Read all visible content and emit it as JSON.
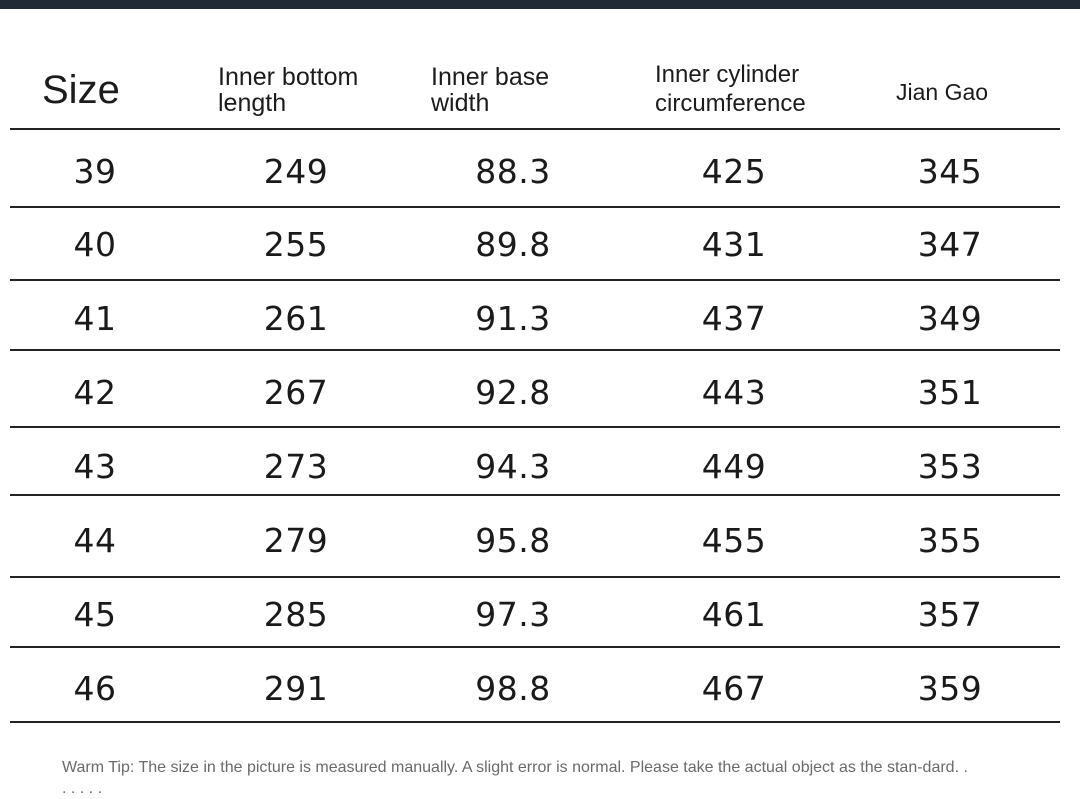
{
  "table": {
    "headers": [
      "Size",
      "Inner bottom\nlength",
      "Inner base\nwidth",
      "Inner cylinder\ncircumference",
      "Jian Gao"
    ],
    "rows": [
      [
        "39",
        "249",
        "88.3",
        "425",
        "345"
      ],
      [
        "40",
        "255",
        "89.8",
        "431",
        "347"
      ],
      [
        "41",
        "261",
        "91.3",
        "437",
        "349"
      ],
      [
        "42",
        "267",
        "92.8",
        "443",
        "351"
      ],
      [
        "43",
        "273",
        "94.3",
        "449",
        "353"
      ],
      [
        "44",
        "279",
        "95.8",
        "455",
        "355"
      ],
      [
        "45",
        "285",
        "97.3",
        "461",
        "357"
      ],
      [
        "46",
        "291",
        "98.8",
        "467",
        "359"
      ]
    ]
  },
  "note": "Warm Tip: The size in the picture is measured manually. A slight error is normal. Please take the actual object as the stan-dard. . . . . . ."
}
